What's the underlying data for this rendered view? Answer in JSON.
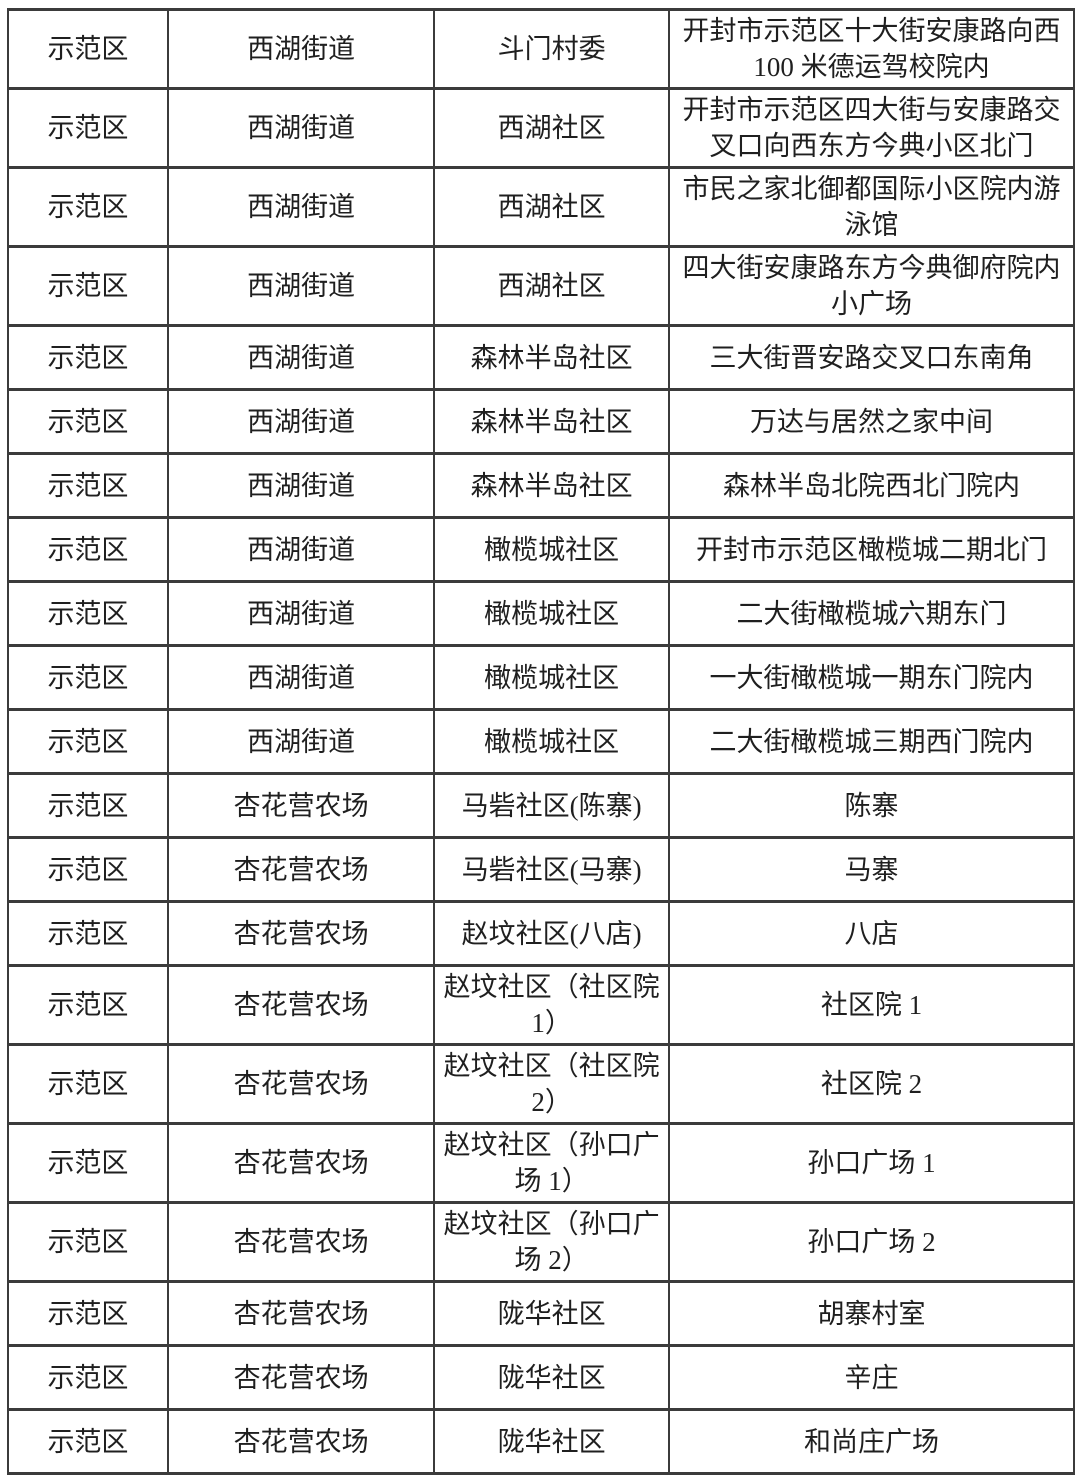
{
  "colors": {
    "border": "#3b3b3b",
    "text": "#1f1f1f",
    "background": "#ffffff"
  },
  "table": {
    "columns": [
      "district",
      "street",
      "community",
      "address"
    ],
    "rows": [
      {
        "district": "示范区",
        "street": "西湖街道",
        "community": "斗门村委",
        "address": "开封市示范区十大街安康路向西 100 米德运驾校院内"
      },
      {
        "district": "示范区",
        "street": "西湖街道",
        "community": "西湖社区",
        "address": "开封市示范区四大街与安康路交叉口向西东方今典小区北门"
      },
      {
        "district": "示范区",
        "street": "西湖街道",
        "community": "西湖社区",
        "address": "市民之家北御都国际小区院内游泳馆"
      },
      {
        "district": "示范区",
        "street": "西湖街道",
        "community": "西湖社区",
        "address": "四大街安康路东方今典御府院内小广场"
      },
      {
        "district": "示范区",
        "street": "西湖街道",
        "community": "森林半岛社区",
        "address": "三大街晋安路交叉口东南角"
      },
      {
        "district": "示范区",
        "street": "西湖街道",
        "community": "森林半岛社区",
        "address": "万达与居然之家中间"
      },
      {
        "district": "示范区",
        "street": "西湖街道",
        "community": "森林半岛社区",
        "address": "森林半岛北院西北门院内"
      },
      {
        "district": "示范区",
        "street": "西湖街道",
        "community": "橄榄城社区",
        "address": "开封市示范区橄榄城二期北门"
      },
      {
        "district": "示范区",
        "street": "西湖街道",
        "community": "橄榄城社区",
        "address": "二大街橄榄城六期东门"
      },
      {
        "district": "示范区",
        "street": "西湖街道",
        "community": "橄榄城社区",
        "address": "一大街橄榄城一期东门院内"
      },
      {
        "district": "示范区",
        "street": "西湖街道",
        "community": "橄榄城社区",
        "address": "二大街橄榄城三期西门院内"
      },
      {
        "district": "示范区",
        "street": "杏花营农场",
        "community": "马砦社区(陈寨)",
        "address": "陈寨"
      },
      {
        "district": "示范区",
        "street": "杏花营农场",
        "community": "马砦社区(马寨)",
        "address": "马寨"
      },
      {
        "district": "示范区",
        "street": "杏花营农场",
        "community": "赵坟社区(八店)",
        "address": "八店"
      },
      {
        "district": "示范区",
        "street": "杏花营农场",
        "community": "赵坟社区（社区院 1）",
        "address": "社区院 1"
      },
      {
        "district": "示范区",
        "street": "杏花营农场",
        "community": "赵坟社区（社区院 2）",
        "address": "社区院 2"
      },
      {
        "district": "示范区",
        "street": "杏花营农场",
        "community": "赵坟社区（孙口广场 1）",
        "address": "孙口广场 1"
      },
      {
        "district": "示范区",
        "street": "杏花营农场",
        "community": "赵坟社区（孙口广场 2）",
        "address": "孙口广场 2"
      },
      {
        "district": "示范区",
        "street": "杏花营农场",
        "community": "陇华社区",
        "address": "胡寨村室"
      },
      {
        "district": "示范区",
        "street": "杏花营农场",
        "community": "陇华社区",
        "address": "辛庄"
      },
      {
        "district": "示范区",
        "street": "杏花营农场",
        "community": "陇华社区",
        "address": "和尚庄广场"
      }
    ]
  }
}
